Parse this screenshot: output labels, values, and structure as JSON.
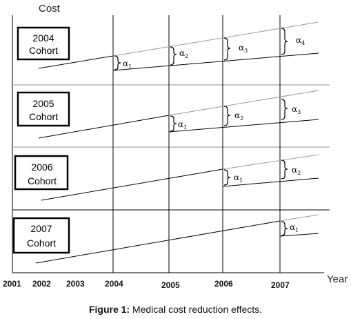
{
  "axis": {
    "y_label": "Cost",
    "x_label": "Year",
    "x_ticks": [
      "2001",
      "2002",
      "2003",
      "2004",
      "2005",
      "2006",
      "2007"
    ]
  },
  "cohorts": [
    {
      "label_line1": "2004",
      "label_line2": "Cohort",
      "alphas": [
        "α",
        "α",
        "α",
        "α"
      ],
      "subscripts": [
        "1",
        "2",
        "3",
        "4"
      ]
    },
    {
      "label_line1": "2005",
      "label_line2": "Cohort",
      "alphas": [
        "α",
        "α",
        "α"
      ],
      "subscripts": [
        "1",
        "2",
        "3"
      ]
    },
    {
      "label_line1": "2006",
      "label_line2": "Cohort",
      "alphas": [
        "α",
        "α"
      ],
      "subscripts": [
        "1",
        "2"
      ]
    },
    {
      "label_line1": "2007",
      "label_line2": "Cohort",
      "alphas": [
        "α"
      ],
      "subscripts": [
        "1"
      ]
    }
  ],
  "caption": {
    "bold_part": "Figure 1:",
    "rest": " Medical cost reduction effects."
  }
}
